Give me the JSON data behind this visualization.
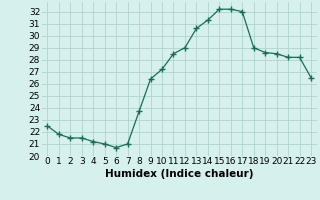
{
  "x": [
    0,
    1,
    2,
    3,
    4,
    5,
    6,
    7,
    8,
    9,
    10,
    11,
    12,
    13,
    14,
    15,
    16,
    17,
    18,
    19,
    20,
    21,
    22,
    23
  ],
  "y": [
    22.5,
    21.8,
    21.5,
    21.5,
    21.2,
    21.0,
    20.7,
    21.0,
    23.7,
    26.4,
    27.2,
    28.5,
    29.0,
    30.6,
    31.3,
    32.2,
    32.2,
    32.0,
    29.0,
    28.6,
    28.5,
    28.2,
    28.2,
    26.5
  ],
  "line_color": "#1a6b5a",
  "marker": "+",
  "marker_size": 4,
  "bg_color": "#d6f0ee",
  "grid_color": "#b0d4d0",
  "xlabel": "Humidex (Indice chaleur)",
  "xlim": [
    -0.5,
    23.5
  ],
  "ylim": [
    20,
    32.8
  ],
  "yticks": [
    20,
    21,
    22,
    23,
    24,
    25,
    26,
    27,
    28,
    29,
    30,
    31,
    32
  ],
  "xticks": [
    0,
    1,
    2,
    3,
    4,
    5,
    6,
    7,
    8,
    9,
    10,
    11,
    12,
    13,
    14,
    15,
    16,
    17,
    18,
    19,
    20,
    21,
    22,
    23
  ],
  "tick_labelsize": 6.5,
  "xlabel_fontsize": 7.5
}
